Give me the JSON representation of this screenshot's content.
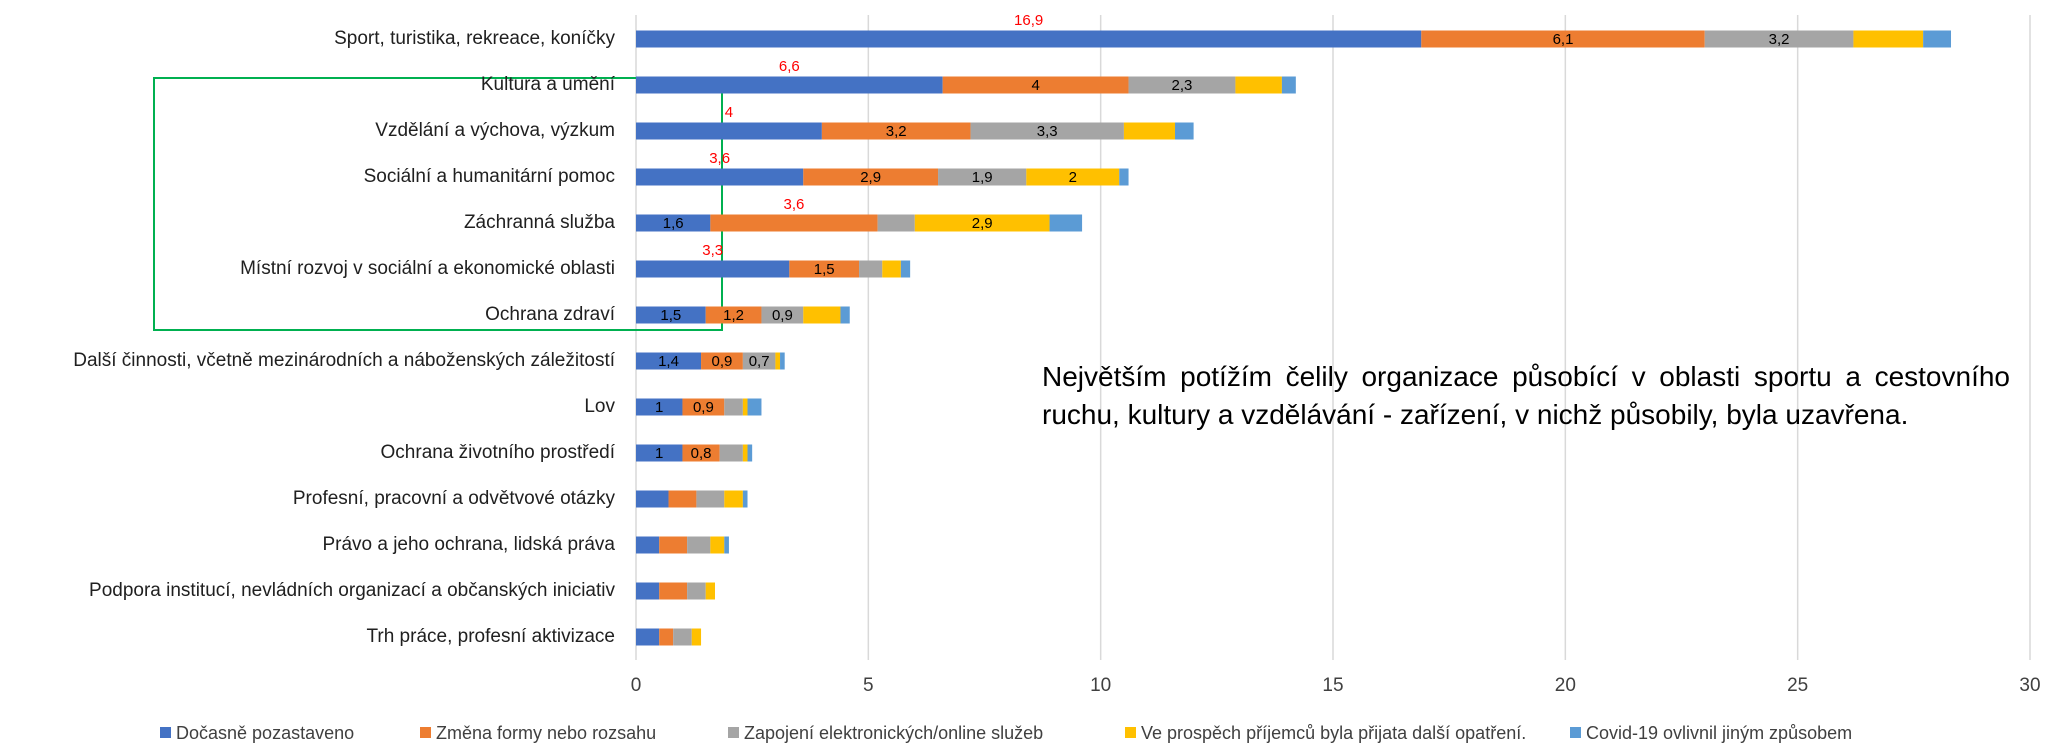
{
  "chart_data": {
    "type": "stacked-bar-horizontal",
    "categories": [
      "Sport, turistika, rekreace, koníčky",
      "Kultura a umění",
      "Vzdělání a výchova, výzkum",
      "Sociální a humanitární pomoc",
      "Záchranná služba",
      "Místní rozvoj v sociální a ekonomické oblasti",
      "Ochrana zdraví",
      "Další činnosti, včetně mezinárodních a náboženských záležitostí",
      "Lov",
      "Ochrana životního prostředí",
      "Profesní, pracovní a odvětvové otázky",
      "Právo a jeho ochrana, lidská práva",
      "Podpora institucí, nevládních organizací a občanských iniciativ",
      "Trh práce, profesní aktivizace"
    ],
    "series": [
      {
        "name": "Dočasně pozastaveno",
        "color": "#4472c4",
        "values": [
          16.9,
          6.6,
          4,
          3.6,
          1.6,
          3.3,
          1.5,
          1.4,
          1,
          1,
          0.7,
          0.5,
          0.5,
          0.5
        ],
        "value_labels": [
          "16,9",
          "6,6",
          "4",
          "3,6",
          "1,6",
          "3,3",
          "1,5",
          "1,4",
          "1",
          "1",
          null,
          null,
          null,
          null
        ]
      },
      {
        "name": "Změna formy nebo rozsahu",
        "color": "#ed7d31",
        "values": [
          6.1,
          4,
          3.2,
          2.9,
          3.6,
          1.5,
          1.2,
          0.9,
          0.9,
          0.8,
          0.6,
          0.6,
          0.6,
          0.3
        ],
        "value_labels": [
          "6,1",
          "4",
          "3,2",
          "2,9",
          "3,6",
          "1,5",
          "1,2",
          "0,9",
          "0,9",
          "0,8",
          null,
          null,
          null,
          null
        ]
      },
      {
        "name": "Zapojení elektronických/online služeb",
        "color": "#a5a5a5",
        "values": [
          3.2,
          2.3,
          3.3,
          1.9,
          0.8,
          0.5,
          0.9,
          0.7,
          0.4,
          0.5,
          0.6,
          0.5,
          0.4,
          0.4
        ],
        "value_labels": [
          "3,2",
          "2,3",
          "3,3",
          "1,9",
          null,
          null,
          "0,9",
          "0,7",
          null,
          null,
          null,
          null,
          null,
          null
        ]
      },
      {
        "name": "Ve prospěch příjemců byla přijata další opatření.",
        "color": "#ffc000",
        "values": [
          1.5,
          1.0,
          1.1,
          2,
          2.9,
          0.4,
          0.8,
          0.1,
          0.1,
          0.1,
          0.4,
          0.3,
          0.2,
          0.2
        ],
        "value_labels": [
          null,
          null,
          null,
          "2",
          "2,9",
          null,
          null,
          null,
          null,
          null,
          null,
          null,
          null,
          null
        ]
      },
      {
        "name": "Covid-19 ovlivnil jiným způsobem",
        "color": "#5b9bd5",
        "values": [
          0.6,
          0.3,
          0.4,
          0.2,
          0.7,
          0.2,
          0.2,
          0.1,
          0.3,
          0.1,
          0.1,
          0.1,
          0,
          0
        ]
      }
    ],
    "xlim": [
      0,
      30
    ],
    "xticks": [
      0,
      5,
      10,
      15,
      20,
      25,
      30
    ],
    "grid": true,
    "legend": "bottom"
  },
  "note": "Největším potížím čelily organizace působící v oblasti sportu a cestovního ruchu, kultury a vzdělávání - zařízení, v nichž působily, byla uzavřena."
}
